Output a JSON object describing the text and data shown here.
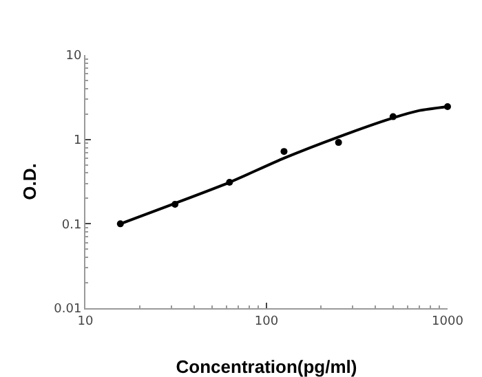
{
  "chart_data": {
    "type": "scatter",
    "xlabel": "Concentration(pg/ml)",
    "ylabel": "O.D.",
    "log": "xy",
    "xlim": [
      10,
      1000
    ],
    "xticks": [
      10,
      100,
      1000
    ],
    "ylim": [
      0.01,
      10
    ],
    "yticks": [
      0.01,
      0.1,
      1,
      10
    ],
    "grid": false,
    "marker": "circle",
    "x": [
      15.6,
      31.25,
      62.5,
      125,
      250,
      500,
      1000
    ],
    "series": [
      {
        "color": "#000000",
        "values": [
          0.1,
          0.17,
          0.31,
          0.72,
          0.92,
          1.86,
          2.45
        ]
      },
      {
        "type": "line",
        "color": "#000000",
        "marker": "none",
        "line_style": "solid",
        "x": [
          15.6,
          31.25,
          62.5,
          125,
          250,
          500,
          700,
          1000
        ],
        "values": [
          0.1,
          0.175,
          0.31,
          0.6,
          1.07,
          1.8,
          2.2,
          2.45
        ]
      }
    ]
  }
}
